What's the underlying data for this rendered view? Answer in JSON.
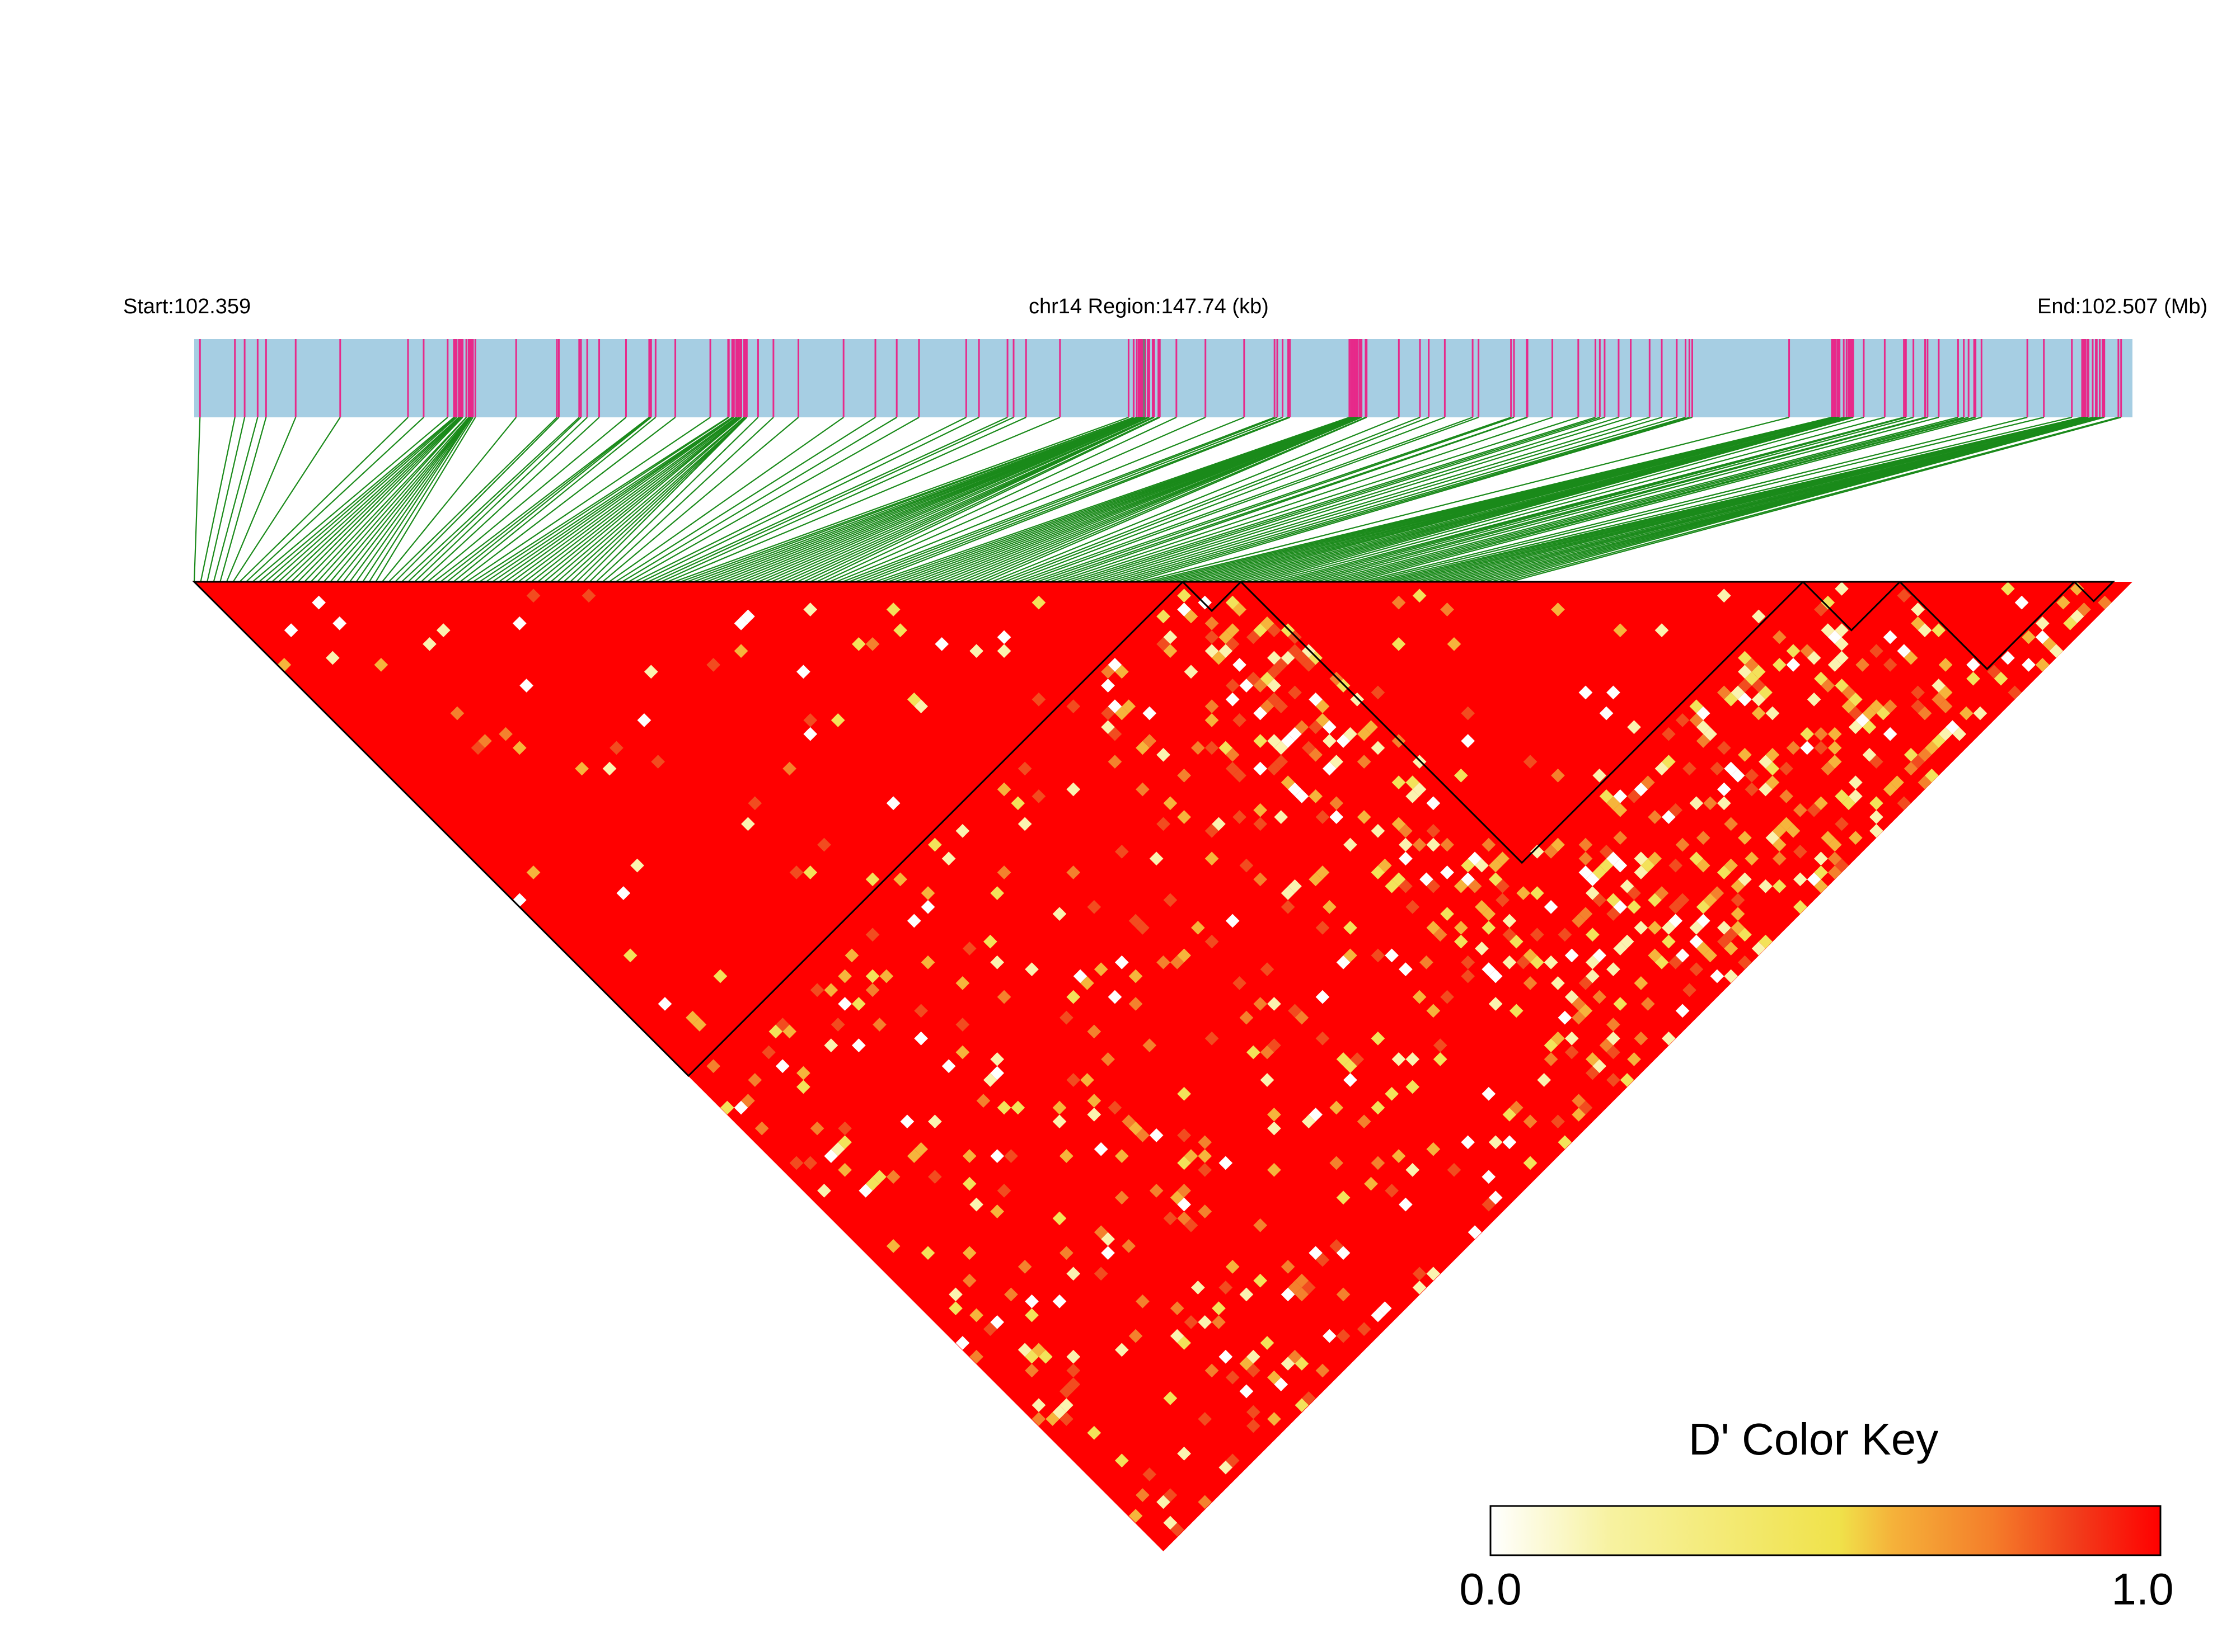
{
  "header": {
    "start_label": "Start:102.359",
    "region_label": "chr14 Region:147.74 (kb)",
    "end_label": "End:102.507 (Mb)"
  },
  "legend": {
    "title": "D' Color Key",
    "min_label": "0.0",
    "max_label": "1.0",
    "gradient_colors": [
      "#ffffff",
      "#f7f2a0",
      "#f0e24a",
      "#f5b23a",
      "#f47d2a",
      "#f23a1a",
      "#ff0000"
    ]
  },
  "colors": {
    "track_background": "#a6cee3",
    "snp_tick": "#e7298a",
    "connector": "#1a8a1a",
    "ld_high": "#ff0000",
    "block_outline": "#000000"
  },
  "chart_data": {
    "type": "heatmap",
    "description_kind": "linkage-disequilibrium triangle (D')",
    "chromosome": "chr14",
    "region_start_mb": 102.359,
    "region_end_mb": 102.507,
    "region_length_kb": 147.74,
    "value_range": [
      0.0,
      1.0
    ],
    "dominant_value": 1.0,
    "ld_blocks_fraction_of_snps": [
      {
        "start": 0.0,
        "end": 0.51
      },
      {
        "start": 0.51,
        "end": 0.54
      },
      {
        "start": 0.54,
        "end": 0.83
      },
      {
        "start": 0.83,
        "end": 0.88
      },
      {
        "start": 0.88,
        "end": 0.97
      },
      {
        "start": 0.97,
        "end": 0.99
      }
    ],
    "snp_cluster_fractions": [
      0.14,
      0.28,
      0.49,
      0.6,
      0.85,
      0.98
    ]
  }
}
